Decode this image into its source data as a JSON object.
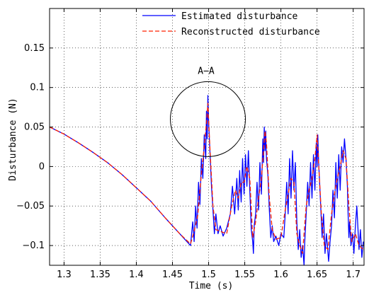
{
  "chart_data": {
    "type": "line",
    "title": "",
    "xlabel": "Time (s)",
    "ylabel": "Disturbance (N)",
    "xlim": [
      1.28,
      1.715
    ],
    "ylim": [
      -0.125,
      0.2
    ],
    "xticks": [
      1.3,
      1.35,
      1.4,
      1.45,
      1.5,
      1.55,
      1.6,
      1.65,
      1.7
    ],
    "xtick_labels": [
      "1.3",
      "1.35",
      "1.4",
      "1.45",
      "1.5",
      "1.55",
      "1.6",
      "1.65",
      "1.7"
    ],
    "yticks": [
      -0.1,
      -0.05,
      0,
      0.05,
      0.1,
      0.15
    ],
    "ytick_labels": [
      "−0.1",
      "−0.05",
      "0",
      "0.05",
      "0.1",
      "0.15"
    ],
    "grid": true,
    "legend_position": "top-right",
    "annotation": {
      "text": "A−A",
      "x": 1.485,
      "y": 0.117
    },
    "circle_marker": {
      "cx": 1.499,
      "cy": 0.06
    },
    "series": [
      {
        "name": "Estimated disturbance",
        "color": "#0000ff",
        "style": "solid",
        "x": [
          1.28,
          1.3,
          1.32,
          1.34,
          1.36,
          1.38,
          1.4,
          1.42,
          1.44,
          1.46,
          1.475,
          1.478,
          1.48,
          1.482,
          1.484,
          1.486,
          1.488,
          1.49,
          1.492,
          1.494,
          1.496,
          1.497,
          1.498,
          1.499,
          1.5,
          1.502,
          1.504,
          1.506,
          1.508,
          1.51,
          1.513,
          1.516,
          1.52,
          1.525,
          1.53,
          1.533,
          1.536,
          1.539,
          1.541,
          1.543,
          1.545,
          1.547,
          1.549,
          1.551,
          1.553,
          1.555,
          1.557,
          1.559,
          1.561,
          1.562,
          1.563,
          1.565,
          1.567,
          1.569,
          1.571,
          1.573,
          1.575,
          1.576,
          1.577,
          1.578,
          1.579,
          1.58,
          1.582,
          1.584,
          1.586,
          1.588,
          1.59,
          1.593,
          1.597,
          1.6,
          1.604,
          1.606,
          1.608,
          1.61,
          1.612,
          1.614,
          1.616,
          1.618,
          1.62,
          1.622,
          1.624,
          1.626,
          1.628,
          1.63,
          1.632,
          1.633,
          1.635,
          1.637,
          1.639,
          1.641,
          1.643,
          1.645,
          1.647,
          1.649,
          1.65,
          1.651,
          1.652,
          1.653,
          1.655,
          1.657,
          1.659,
          1.661,
          1.663,
          1.666,
          1.668,
          1.67,
          1.672,
          1.674,
          1.676,
          1.678,
          1.68,
          1.682,
          1.684,
          1.686,
          1.688,
          1.69,
          1.692,
          1.693,
          1.694,
          1.695,
          1.697,
          1.699,
          1.701,
          1.703,
          1.705,
          1.708,
          1.71,
          1.712,
          1.714
        ],
        "y": [
          0.05,
          0.041,
          0.03,
          0.018,
          0.005,
          -0.01,
          -0.027,
          -0.044,
          -0.065,
          -0.085,
          -0.1,
          -0.07,
          -0.095,
          -0.05,
          -0.078,
          -0.02,
          -0.048,
          0.01,
          -0.015,
          0.04,
          0.01,
          0.07,
          0.035,
          0.09,
          0.055,
          0.015,
          -0.025,
          -0.055,
          -0.085,
          -0.06,
          -0.085,
          -0.075,
          -0.088,
          -0.078,
          -0.06,
          -0.025,
          -0.06,
          -0.015,
          -0.055,
          -0.005,
          -0.045,
          0.01,
          -0.035,
          0.015,
          -0.025,
          0.02,
          -0.03,
          -0.08,
          -0.095,
          -0.11,
          -0.075,
          -0.06,
          -0.02,
          -0.055,
          0.005,
          -0.035,
          0.035,
          0.005,
          0.05,
          0.02,
          0.045,
          0.01,
          -0.01,
          -0.055,
          -0.09,
          -0.075,
          -0.095,
          -0.088,
          -0.1,
          -0.085,
          -0.09,
          -0.06,
          -0.02,
          -0.06,
          0.01,
          -0.04,
          0.02,
          -0.03,
          0.005,
          -0.07,
          -0.105,
          -0.08,
          -0.115,
          -0.1,
          -0.125,
          -0.095,
          -0.06,
          -0.02,
          -0.05,
          0.005,
          -0.04,
          0.015,
          -0.03,
          0.03,
          0.0,
          0.04,
          0.01,
          -0.01,
          -0.05,
          -0.09,
          -0.06,
          -0.11,
          -0.085,
          -0.12,
          -0.095,
          -0.075,
          -0.03,
          -0.065,
          0.005,
          -0.04,
          0.015,
          -0.03,
          0.025,
          0.005,
          0.035,
          0.01,
          -0.025,
          -0.06,
          -0.09,
          -0.07,
          -0.1,
          -0.085,
          -0.11,
          -0.075,
          -0.05,
          -0.105,
          -0.08,
          -0.115,
          -0.095
        ]
      },
      {
        "name": "Reconstructed disturbance",
        "color": "#ff2200",
        "style": "dashed",
        "x": [
          1.28,
          1.3,
          1.32,
          1.34,
          1.36,
          1.38,
          1.4,
          1.42,
          1.44,
          1.46,
          1.475,
          1.48,
          1.485,
          1.49,
          1.494,
          1.497,
          1.499,
          1.502,
          1.506,
          1.51,
          1.516,
          1.525,
          1.532,
          1.537,
          1.541,
          1.545,
          1.549,
          1.553,
          1.557,
          1.561,
          1.565,
          1.569,
          1.573,
          1.576,
          1.578,
          1.58,
          1.584,
          1.588,
          1.593,
          1.6,
          1.606,
          1.61,
          1.614,
          1.618,
          1.622,
          1.626,
          1.63,
          1.635,
          1.639,
          1.643,
          1.647,
          1.65,
          1.652,
          1.656,
          1.66,
          1.665,
          1.67,
          1.674,
          1.678,
          1.682,
          1.686,
          1.69,
          1.694,
          1.698,
          1.703,
          1.708,
          1.714
        ],
        "y": [
          0.05,
          0.041,
          0.03,
          0.018,
          0.005,
          -0.01,
          -0.027,
          -0.044,
          -0.065,
          -0.085,
          -0.098,
          -0.082,
          -0.062,
          -0.01,
          0.025,
          0.055,
          0.08,
          0.02,
          -0.05,
          -0.08,
          -0.082,
          -0.085,
          -0.05,
          -0.03,
          -0.04,
          -0.02,
          -0.02,
          0.0,
          -0.015,
          -0.09,
          -0.07,
          -0.04,
          -0.015,
          0.02,
          0.045,
          0.03,
          -0.04,
          -0.08,
          -0.092,
          -0.09,
          -0.055,
          -0.035,
          -0.015,
          -0.02,
          -0.085,
          -0.1,
          -0.11,
          -0.05,
          -0.03,
          -0.015,
          0.01,
          0.04,
          0.005,
          -0.06,
          -0.1,
          -0.105,
          -0.06,
          -0.035,
          -0.015,
          0.0,
          0.02,
          0.01,
          -0.05,
          -0.095,
          -0.085,
          -0.1,
          -0.105
        ]
      }
    ]
  }
}
